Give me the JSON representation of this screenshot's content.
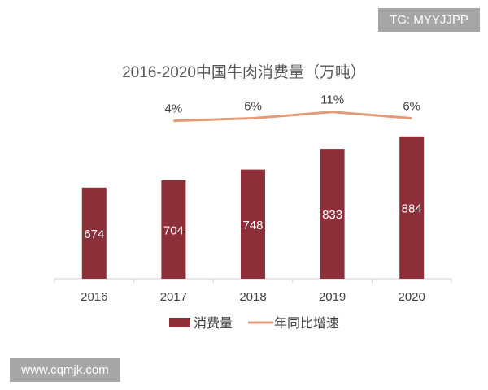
{
  "watermarks": {
    "top": "TG: MYYJJPP",
    "bottom": "www.cqmjk.com"
  },
  "chart_data": {
    "type": "bar",
    "title": "2016-2020中国牛肉消费量（万吨）",
    "categories": [
      "2016",
      "2017",
      "2018",
      "2019",
      "2020"
    ],
    "series": [
      {
        "name": "消费量",
        "type": "bar",
        "values": [
          674,
          704,
          748,
          833,
          884
        ],
        "labels": [
          "674",
          "704",
          "748",
          "833",
          "884"
        ],
        "color": "#8c2f39"
      },
      {
        "name": "年同比增速",
        "type": "line",
        "values": [
          null,
          4,
          6,
          11,
          6
        ],
        "labels": [
          "",
          "4%",
          "6%",
          "11%",
          "6%"
        ],
        "unit": "%",
        "color": "#e49a78"
      }
    ],
    "ylim": [
      300,
      1000
    ],
    "y2lim": [
      -120,
      14
    ],
    "grid": false,
    "legend": "bottom"
  }
}
